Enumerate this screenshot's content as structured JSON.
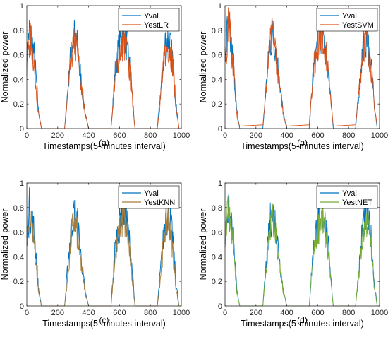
{
  "chart_data": [
    {
      "type": "line",
      "caption": "(a)",
      "xlabel": "Timestamps(5-minutes interval)",
      "ylabel": "Normalized power",
      "xlim": [
        0,
        1000
      ],
      "ylim": [
        0,
        1
      ],
      "xticks": [
        "0",
        "200",
        "400",
        "600",
        "800",
        "1000"
      ],
      "yticks": [
        "0",
        "0.2",
        "0.4",
        "0.6",
        "0.8",
        "1"
      ],
      "legend_position": "top-right",
      "series": [
        {
          "name": "Yval",
          "color": "#0072BD",
          "x": [
            0,
            15,
            30,
            45,
            60,
            75,
            95,
            245,
            270,
            290,
            310,
            330,
            355,
            380,
            400,
            545,
            570,
            600,
            625,
            650,
            675,
            700,
            845,
            870,
            895,
            920,
            945,
            965,
            985
          ],
          "y": [
            0.55,
            0.8,
            0.72,
            0.62,
            0.42,
            0.15,
            0.0,
            0.0,
            0.4,
            0.68,
            0.76,
            0.65,
            0.35,
            0.1,
            0.0,
            0.0,
            0.45,
            0.7,
            0.79,
            0.68,
            0.4,
            0.0,
            0.0,
            0.35,
            0.7,
            0.74,
            0.55,
            0.2,
            0.0
          ]
        },
        {
          "name": "YestLR",
          "color": "#D95319",
          "x": [
            0,
            15,
            30,
            45,
            60,
            75,
            95,
            245,
            270,
            290,
            310,
            330,
            355,
            380,
            400,
            545,
            570,
            600,
            625,
            650,
            675,
            700,
            845,
            870,
            895,
            920,
            945,
            965,
            985
          ],
          "y": [
            0.5,
            0.72,
            0.7,
            0.55,
            0.35,
            0.12,
            0.0,
            0.0,
            0.35,
            0.6,
            0.7,
            0.6,
            0.3,
            0.12,
            0.0,
            0.0,
            0.4,
            0.62,
            0.7,
            0.62,
            0.35,
            0.0,
            0.0,
            0.3,
            0.62,
            0.68,
            0.52,
            0.2,
            0.0
          ]
        }
      ]
    },
    {
      "type": "line",
      "caption": "(b)",
      "xlabel": "Timestamps(5-minutes interval)",
      "ylabel": "Normalized power",
      "xlim": [
        0,
        1000
      ],
      "ylim": [
        0,
        1
      ],
      "xticks": [
        "0",
        "200",
        "400",
        "600",
        "800",
        "1000"
      ],
      "yticks": [
        "0",
        "0.2",
        "0.4",
        "0.6",
        "0.8",
        "1"
      ],
      "legend_position": "top-right",
      "series": [
        {
          "name": "Yval",
          "color": "#0072BD",
          "x": [
            0,
            15,
            30,
            45,
            60,
            75,
            95,
            245,
            270,
            290,
            310,
            330,
            355,
            380,
            400,
            545,
            570,
            600,
            625,
            650,
            675,
            700,
            845,
            870,
            895,
            920,
            945,
            965,
            985
          ],
          "y": [
            0.55,
            0.8,
            0.72,
            0.62,
            0.42,
            0.15,
            0.0,
            0.0,
            0.4,
            0.68,
            0.76,
            0.65,
            0.35,
            0.1,
            0.0,
            0.0,
            0.45,
            0.7,
            0.79,
            0.68,
            0.4,
            0.0,
            0.0,
            0.35,
            0.7,
            0.74,
            0.55,
            0.2,
            0.0
          ]
        },
        {
          "name": "YestSVM",
          "color": "#D95319",
          "x": [
            0,
            15,
            30,
            45,
            60,
            75,
            95,
            245,
            270,
            290,
            310,
            330,
            355,
            380,
            400,
            545,
            570,
            600,
            625,
            650,
            675,
            700,
            845,
            870,
            895,
            920,
            945,
            965,
            985
          ],
          "y": [
            0.55,
            0.7,
            0.96,
            0.6,
            0.4,
            0.12,
            0.02,
            0.03,
            0.38,
            0.66,
            0.78,
            0.6,
            0.32,
            0.1,
            0.02,
            0.03,
            0.45,
            0.7,
            0.82,
            0.62,
            0.38,
            0.02,
            0.03,
            0.35,
            0.68,
            0.72,
            0.5,
            0.2,
            0.02
          ]
        }
      ]
    },
    {
      "type": "line",
      "caption": "(c)",
      "xlabel": "Timestamps(5-minutes interval)",
      "ylabel": "Normalized power",
      "xlim": [
        0,
        1000
      ],
      "ylim": [
        0,
        1
      ],
      "xticks": [
        "0",
        "200",
        "400",
        "600",
        "800",
        "1000"
      ],
      "yticks": [
        "0",
        "0.2",
        "0.4",
        "0.6",
        "0.8",
        "1"
      ],
      "legend_position": "top-right",
      "series": [
        {
          "name": "Yval",
          "color": "#0072BD",
          "x": [
            0,
            15,
            30,
            45,
            60,
            75,
            95,
            245,
            270,
            290,
            310,
            330,
            355,
            380,
            400,
            545,
            570,
            600,
            625,
            650,
            675,
            700,
            845,
            870,
            895,
            920,
            945,
            965,
            985
          ],
          "y": [
            0.55,
            0.8,
            0.72,
            0.62,
            0.42,
            0.15,
            0.0,
            0.0,
            0.4,
            0.68,
            0.76,
            0.65,
            0.35,
            0.1,
            0.0,
            0.0,
            0.45,
            0.7,
            0.79,
            0.68,
            0.4,
            0.0,
            0.0,
            0.35,
            0.7,
            0.74,
            0.55,
            0.2,
            0.0
          ]
        },
        {
          "name": "YestKNN",
          "color": "#A67C3A",
          "x": [
            0,
            15,
            30,
            45,
            60,
            75,
            95,
            245,
            270,
            290,
            310,
            330,
            355,
            380,
            400,
            545,
            570,
            600,
            625,
            650,
            675,
            700,
            845,
            870,
            895,
            920,
            945,
            965,
            985
          ],
          "y": [
            0.45,
            0.7,
            0.68,
            0.55,
            0.35,
            0.12,
            0.0,
            0.0,
            0.3,
            0.6,
            0.7,
            0.55,
            0.3,
            0.1,
            0.0,
            0.0,
            0.38,
            0.62,
            0.72,
            0.6,
            0.32,
            0.0,
            0.0,
            0.3,
            0.65,
            0.72,
            0.45,
            0.15,
            0.0
          ]
        }
      ]
    },
    {
      "type": "line",
      "caption": "(d)",
      "xlabel": "Timestamps(5-minutes interval)",
      "ylabel": "Normalized power",
      "xlim": [
        0,
        1000
      ],
      "ylim": [
        0,
        1
      ],
      "xticks": [
        "0",
        "200",
        "400",
        "600",
        "800",
        "1000"
      ],
      "yticks": [
        "0",
        "0.2",
        "0.4",
        "0.6",
        "0.8",
        "1"
      ],
      "legend_position": "top-right",
      "series": [
        {
          "name": "Yval",
          "color": "#0072BD",
          "x": [
            0,
            15,
            30,
            45,
            60,
            75,
            95,
            245,
            270,
            290,
            310,
            330,
            355,
            380,
            400,
            545,
            570,
            600,
            625,
            650,
            675,
            700,
            845,
            870,
            895,
            920,
            945,
            965,
            985
          ],
          "y": [
            0.55,
            0.8,
            0.72,
            0.62,
            0.42,
            0.15,
            0.0,
            0.0,
            0.4,
            0.68,
            0.76,
            0.65,
            0.35,
            0.1,
            0.0,
            0.0,
            0.45,
            0.7,
            0.79,
            0.68,
            0.4,
            0.0,
            0.0,
            0.35,
            0.7,
            0.74,
            0.55,
            0.2,
            0.0
          ]
        },
        {
          "name": "YestNET",
          "color": "#77AC30",
          "x": [
            0,
            15,
            30,
            45,
            60,
            75,
            95,
            245,
            270,
            290,
            310,
            330,
            355,
            380,
            400,
            545,
            570,
            600,
            625,
            650,
            675,
            700,
            845,
            870,
            895,
            920,
            945,
            965,
            985
          ],
          "y": [
            0.5,
            0.82,
            0.7,
            0.58,
            0.38,
            0.12,
            0.0,
            0.0,
            0.35,
            0.62,
            0.7,
            0.58,
            0.3,
            0.1,
            0.0,
            0.0,
            0.4,
            0.62,
            0.72,
            0.62,
            0.35,
            0.0,
            0.0,
            0.3,
            0.62,
            0.7,
            0.5,
            0.18,
            0.0
          ]
        }
      ]
    }
  ]
}
